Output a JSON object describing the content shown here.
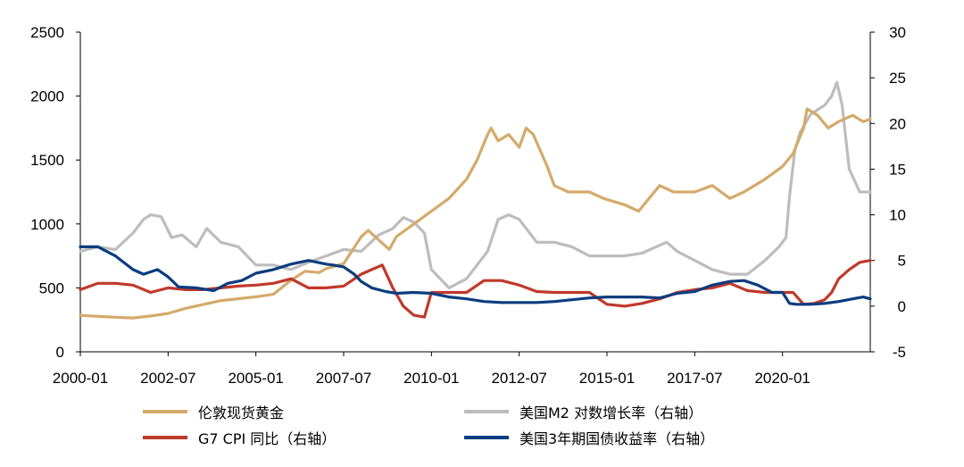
{
  "chart_data": {
    "type": "line",
    "x_tick_labels": [
      "2000-01",
      "2002-07",
      "2005-01",
      "2007-07",
      "2010-01",
      "2012-07",
      "2015-01",
      "2017-07",
      "2020-01"
    ],
    "x_range": [
      2000.0,
      2022.5
    ],
    "left_axis": {
      "ticks": [
        "0",
        "500",
        "1000",
        "1500",
        "2000",
        "2500"
      ],
      "range": [
        0,
        2500
      ]
    },
    "right_axis": {
      "ticks": [
        "-5",
        "0",
        "5",
        "10",
        "15",
        "20",
        "25",
        "30"
      ],
      "range": [
        -5,
        30
      ]
    },
    "grid": false,
    "legend_position": "bottom",
    "series": [
      {
        "name": "伦敦现货黄金",
        "axis": "left",
        "color": "#D4AA6A",
        "x": [
          2000.0,
          2001.0,
          2001.5,
          2002.0,
          2002.5,
          2003.0,
          2004.0,
          2005.0,
          2005.5,
          2006.0,
          2006.4,
          2006.8,
          2007.0,
          2007.5,
          2008.0,
          2008.2,
          2008.8,
          2009.0,
          2009.5,
          2010.0,
          2010.5,
          2011.0,
          2011.3,
          2011.6,
          2011.7,
          2011.9,
          2012.2,
          2012.5,
          2012.7,
          2012.9,
          2013.3,
          2013.5,
          2013.9,
          2014.5,
          2014.9,
          2015.5,
          2015.9,
          2016.5,
          2016.9,
          2017.5,
          2018.0,
          2018.5,
          2018.9,
          2019.5,
          2020.0,
          2020.3,
          2020.6,
          2020.7,
          2021.0,
          2021.3,
          2021.6,
          2022.0,
          2022.3,
          2022.5
        ],
        "y": [
          285,
          270,
          265,
          280,
          300,
          340,
          400,
          430,
          450,
          560,
          630,
          620,
          650,
          690,
          900,
          950,
          800,
          900,
          1000,
          1100,
          1200,
          1350,
          1500,
          1700,
          1750,
          1650,
          1700,
          1600,
          1750,
          1700,
          1450,
          1300,
          1250,
          1250,
          1200,
          1150,
          1100,
          1300,
          1250,
          1250,
          1300,
          1200,
          1250,
          1350,
          1450,
          1550,
          1750,
          1900,
          1850,
          1750,
          1800,
          1850,
          1800,
          1820
        ]
      },
      {
        "name": "美国M2 对数增长率（右轴）",
        "axis": "right",
        "color": "#BDBDBD",
        "x": [
          2000.0,
          2000.5,
          2001.0,
          2001.5,
          2001.8,
          2002.0,
          2002.3,
          2002.6,
          2002.9,
          2003.3,
          2003.6,
          2004.0,
          2004.5,
          2005.0,
          2005.5,
          2006.0,
          2006.5,
          2007.0,
          2007.5,
          2008.0,
          2008.5,
          2008.9,
          2009.2,
          2009.5,
          2009.8,
          2010.0,
          2010.5,
          2011.0,
          2011.4,
          2011.6,
          2011.9,
          2012.2,
          2012.5,
          2012.7,
          2013.0,
          2013.5,
          2014.0,
          2014.5,
          2015.0,
          2015.5,
          2016.0,
          2016.4,
          2016.7,
          2017.0,
          2017.5,
          2018.0,
          2018.5,
          2019.0,
          2019.5,
          2019.9,
          2020.1,
          2020.2,
          2020.35,
          2020.5,
          2020.8,
          2021.0,
          2021.2,
          2021.4,
          2021.55,
          2021.7,
          2021.9,
          2022.2,
          2022.5
        ],
        "y": [
          6,
          6.5,
          6.2,
          8,
          9.5,
          10,
          9.8,
          7.5,
          7.8,
          6.5,
          8.5,
          7,
          6.5,
          4.5,
          4.5,
          4,
          4.8,
          5.5,
          6.2,
          6,
          7.8,
          8.5,
          9.7,
          9.2,
          8,
          4,
          2,
          3,
          5,
          6,
          9.5,
          10,
          9.5,
          8.5,
          7,
          7,
          6.5,
          5.5,
          5.5,
          5.5,
          5.8,
          6.5,
          7,
          6,
          5,
          4,
          3.5,
          3.5,
          5,
          6.5,
          7.5,
          12,
          17,
          19,
          21,
          21.5,
          22,
          23,
          24.5,
          22,
          15,
          12.5,
          12.5
        ]
      },
      {
        "name": "G7 CPI 同比（右轴）",
        "axis": "right",
        "color": "#C0392B",
        "x": [
          2000.0,
          2000.5,
          2001.0,
          2001.5,
          2002.0,
          2002.5,
          2003.0,
          2003.5,
          2004.0,
          2004.5,
          2005.0,
          2005.5,
          2006.0,
          2006.5,
          2007.0,
          2007.5,
          2008.0,
          2008.3,
          2008.6,
          2008.9,
          2009.2,
          2009.5,
          2009.8,
          2010.0,
          2010.5,
          2011.0,
          2011.5,
          2012.0,
          2012.5,
          2013.0,
          2013.5,
          2014.0,
          2014.5,
          2015.0,
          2015.5,
          2016.0,
          2016.5,
          2017.0,
          2017.5,
          2018.0,
          2018.5,
          2019.0,
          2019.5,
          2020.0,
          2020.3,
          2020.6,
          2020.9,
          2021.2,
          2021.4,
          2021.6,
          2021.9,
          2022.2,
          2022.5
        ],
        "y": [
          1.8,
          2.5,
          2.5,
          2.3,
          1.5,
          2,
          1.8,
          1.8,
          2,
          2.2,
          2.3,
          2.5,
          3,
          2,
          2,
          2.2,
          3.5,
          4,
          4.5,
          2,
          0,
          -1,
          -1.2,
          1.5,
          1.5,
          1.5,
          2.8,
          2.8,
          2.3,
          1.6,
          1.5,
          1.5,
          1.5,
          0.2,
          0,
          0.3,
          0.8,
          1.5,
          1.8,
          2,
          2.5,
          1.7,
          1.5,
          1.5,
          1.5,
          0.2,
          0.3,
          0.7,
          1.5,
          3,
          4,
          4.8,
          5
        ]
      },
      {
        "name": "美国3年期国债收益率（右轴）",
        "axis": "right",
        "color": "#0B3D7F",
        "x": [
          2000.0,
          2000.5,
          2001.0,
          2001.5,
          2001.8,
          2002.2,
          2002.5,
          2002.8,
          2003.3,
          2003.8,
          2004.2,
          2004.6,
          2005.0,
          2005.5,
          2006.0,
          2006.5,
          2007.0,
          2007.2,
          2007.5,
          2007.8,
          2008.0,
          2008.3,
          2008.7,
          2009.0,
          2009.5,
          2010.0,
          2010.5,
          2011.0,
          2011.5,
          2012.0,
          2012.5,
          2013.0,
          2013.5,
          2014.0,
          2014.5,
          2015.0,
          2015.5,
          2016.0,
          2016.5,
          2017.0,
          2017.5,
          2018.0,
          2018.5,
          2018.9,
          2019.3,
          2019.7,
          2020.0,
          2020.2,
          2020.4,
          2020.8,
          2021.2,
          2021.6,
          2022.0,
          2022.3,
          2022.5
        ],
        "y": [
          6.5,
          6.5,
          5.5,
          4,
          3.5,
          4,
          3.2,
          2.1,
          2,
          1.7,
          2.5,
          2.8,
          3.6,
          4,
          4.6,
          5,
          4.6,
          4.5,
          4.3,
          3.5,
          2.7,
          2,
          1.6,
          1.4,
          1.5,
          1.4,
          1,
          0.8,
          0.5,
          0.4,
          0.4,
          0.4,
          0.5,
          0.7,
          0.9,
          1,
          1,
          1,
          0.9,
          1.4,
          1.6,
          2.3,
          2.7,
          2.8,
          2.3,
          1.5,
          1.5,
          0.3,
          0.2,
          0.2,
          0.3,
          0.5,
          0.8,
          1,
          0.8
        ]
      }
    ]
  }
}
